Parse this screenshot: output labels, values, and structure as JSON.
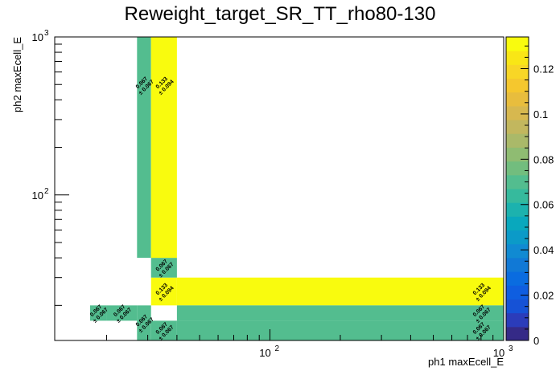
{
  "title": "Reweight_target_SR_TT_rho80-130",
  "chart_data": {
    "type": "heatmap",
    "title": "Reweight_target_SR_TT_rho80-130",
    "xlabel": "ph1 maxEcell_E",
    "ylabel": "ph2 maxEcell_E",
    "x_scale": "log",
    "y_scale": "log",
    "xlim": [
      12,
      1000
    ],
    "ylim": [
      12,
      1000
    ],
    "x_tick_labels": [
      {
        "value": 100,
        "base": "10",
        "exp": "2"
      },
      {
        "value": 1000,
        "base": "10",
        "exp": "3"
      }
    ],
    "y_tick_labels": [
      {
        "value": 100,
        "base": "10",
        "exp": "2"
      },
      {
        "value": 1000,
        "base": "10",
        "exp": "3"
      }
    ],
    "colorbar": {
      "zlim": [
        0,
        0.134
      ],
      "tick_labels": [
        "0",
        "0.02",
        "0.04",
        "0.06",
        "0.08",
        "0.1",
        "0.12"
      ],
      "tick_values": [
        0,
        0.02,
        0.04,
        0.06,
        0.08,
        0.1,
        0.12
      ],
      "palette": [
        "#352a87",
        "#2b3cba",
        "#1652d6",
        "#0f5ee0",
        "#0a6ce0",
        "#1179d6",
        "#108ad2",
        "#0b9ac8",
        "#09a8bd",
        "#1cb2ae",
        "#36ba9d",
        "#53bd8f",
        "#72bd7e",
        "#8fbc72",
        "#aab969",
        "#c2b75e",
        "#d7b84f",
        "#e8bd3d",
        "#f5c72e",
        "#f8d626",
        "#f9e616",
        "#f9fb0e"
      ]
    },
    "cells": [
      {
        "x0": 17,
        "x1": 20,
        "y0": 16,
        "y1": 20,
        "value": 0.067,
        "label": "0.067",
        "error": "± 0.067"
      },
      {
        "x0": 20,
        "x1": 27,
        "y0": 16,
        "y1": 20,
        "value": 0.067,
        "label": "0.067",
        "error": "± 0.067"
      },
      {
        "x0": 27,
        "x1": 31,
        "y0": 12,
        "y1": 20,
        "value": 0.067,
        "label": "0.067",
        "error": "± 0.067"
      },
      {
        "x0": 31,
        "x1": 40,
        "y0": 12,
        "y1": 16,
        "value": 0.067,
        "label": "0.067",
        "error": "± 0.067"
      },
      {
        "x0": 31,
        "x1": 40,
        "y0": 20,
        "y1": 30,
        "value": 0.133,
        "label": "0.133",
        "error": "± 0.094"
      },
      {
        "x0": 31,
        "x1": 40,
        "y0": 30,
        "y1": 40,
        "value": 0.067,
        "label": "0.067",
        "error": "± 0.067"
      },
      {
        "x0": 27,
        "x1": 31,
        "y0": 40,
        "y1": 1000,
        "value": 0.067,
        "label": "0.067",
        "error": "± 0.067"
      },
      {
        "x0": 31,
        "x1": 40,
        "y0": 40,
        "y1": 1000,
        "value": 0.133,
        "label": "0.133",
        "error": "± 0.094"
      },
      {
        "x0": 40,
        "x1": 1000,
        "y0": 20,
        "y1": 30,
        "value": 0.133,
        "label": "0.133",
        "error": "± 0.094"
      },
      {
        "x0": 40,
        "x1": 1000,
        "y0": 16,
        "y1": 20,
        "value": 0.067,
        "label": "0.067",
        "error": "± 0.067"
      },
      {
        "x0": 40,
        "x1": 1000,
        "y0": 12,
        "y1": 16,
        "value": 0.067,
        "label": "0.067",
        "error": "± 0.067"
      }
    ]
  }
}
